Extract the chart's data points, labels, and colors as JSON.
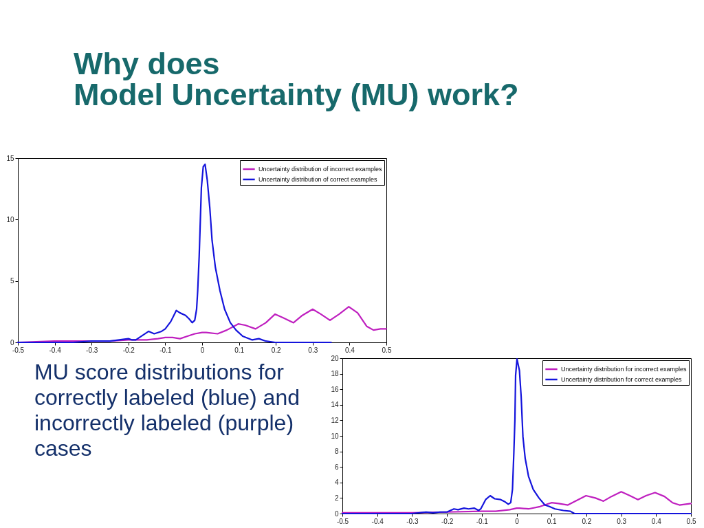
{
  "chart_data": [
    {
      "type": "other",
      "title": "Why does\nModel Uncertainty (MU) work?"
    },
    {
      "type": "line",
      "xlim": [
        -0.5,
        0.5
      ],
      "xticks": [
        -0.5,
        -0.4,
        -0.3,
        -0.2,
        -0.1,
        0,
        0.1,
        0.2,
        0.3,
        0.4,
        0.5
      ],
      "ylim": [
        0,
        15
      ],
      "yticks": [
        0,
        5,
        10,
        15
      ],
      "legend": "top right",
      "series": [
        {
          "name": "Uncertainty distribution of incorrect examples",
          "color": "#bf1fbf",
          "x": [
            -0.5,
            -0.4,
            -0.3,
            -0.25,
            -0.2,
            -0.18,
            -0.15,
            -0.12,
            -0.1,
            -0.08,
            -0.06,
            -0.04,
            -0.02,
            0,
            0.011,
            0.042,
            0.067,
            0.098,
            0.117,
            0.145,
            0.173,
            0.198,
            0.22,
            0.248,
            0.272,
            0.3,
            0.322,
            0.347,
            0.372,
            0.398,
            0.422,
            0.447,
            0.465,
            0.484,
            0.5
          ],
          "values": [
            0,
            0.1,
            0.1,
            0.1,
            0.2,
            0.2,
            0.2,
            0.3,
            0.4,
            0.4,
            0.3,
            0.5,
            0.7,
            0.8,
            0.8,
            0.7,
            1.0,
            1.5,
            1.4,
            1.1,
            1.6,
            2.3,
            2.0,
            1.6,
            2.2,
            2.7,
            2.3,
            1.8,
            2.3,
            2.9,
            2.4,
            1.3,
            1.0,
            1.1,
            1.1
          ]
        },
        {
          "name": "Uncertainty distribution of correct examples",
          "color": "#1414dc",
          "x": [
            -0.5,
            -0.35,
            -0.3,
            -0.25,
            -0.2,
            -0.19,
            -0.18,
            -0.145,
            -0.13,
            -0.11,
            -0.1,
            -0.085,
            -0.07,
            -0.06,
            -0.045,
            -0.035,
            -0.027,
            -0.02,
            -0.015,
            -0.012,
            -0.008,
            -0.005,
            -0.002,
            0.003,
            0.008,
            0.014,
            0.021,
            0.027,
            0.036,
            0.0485,
            0.061,
            0.0765,
            0.092,
            0.11,
            0.136,
            0.154,
            0.173,
            0.198,
            0.23,
            0.35
          ],
          "values": [
            0,
            0,
            0.1,
            0.1,
            0.3,
            0.2,
            0.2,
            0.9,
            0.7,
            0.9,
            1.1,
            1.7,
            2.6,
            2.4,
            2.2,
            1.9,
            1.6,
            1.8,
            2.7,
            4.2,
            7.0,
            9.8,
            12.6,
            14.3,
            14.5,
            13.2,
            10.9,
            8.3,
            6.1,
            4.2,
            2.7,
            1.6,
            1.0,
            0.5,
            0.2,
            0.3,
            0.1,
            0,
            0,
            0
          ]
        }
      ]
    },
    {
      "type": "other",
      "annotations": [
        "MU score distributions for correctly labeled (blue) and incorrectly labeled (purple) cases"
      ]
    },
    {
      "type": "line",
      "xlim": [
        -0.5,
        0.5
      ],
      "xticks": [
        -0.5,
        -0.4,
        -0.3,
        -0.2,
        -0.1,
        0,
        0.1,
        0.2,
        0.3,
        0.4,
        0.5
      ],
      "ylim": [
        0,
        20
      ],
      "yticks": [
        0,
        2,
        4,
        6,
        8,
        10,
        12,
        14,
        16,
        18,
        20
      ],
      "legend": "top right",
      "series": [
        {
          "name": "Uncertainty distribution for incorrect examples",
          "color": "#bf1fbf",
          "x": [
            -0.5,
            -0.3,
            -0.2,
            -0.1,
            -0.06,
            -0.02,
            0,
            0.008,
            0.034,
            0.067,
            0.1,
            0.12,
            0.147,
            0.173,
            0.199,
            0.226,
            0.249,
            0.272,
            0.3,
            0.325,
            0.348,
            0.371,
            0.397,
            0.424,
            0.447,
            0.467,
            0.5
          ],
          "values": [
            0.1,
            0.1,
            0.2,
            0.3,
            0.3,
            0.5,
            0.7,
            0.7,
            0.6,
            0.9,
            1.4,
            1.3,
            1.1,
            1.7,
            2.3,
            2.0,
            1.6,
            2.2,
            2.8,
            2.3,
            1.8,
            2.3,
            2.7,
            2.2,
            1.4,
            1.1,
            1.3
          ]
        },
        {
          "name": "Uncertainty distribution for correct examples",
          "color": "#1414dc",
          "x": [
            -0.5,
            -0.3,
            -0.26,
            -0.24,
            -0.22,
            -0.2,
            -0.18,
            -0.168,
            -0.151,
            -0.138,
            -0.122,
            -0.109,
            -0.103,
            -0.089,
            -0.076,
            -0.063,
            -0.046,
            -0.033,
            -0.024,
            -0.017,
            -0.012,
            -0.008,
            -0.005,
            -0.003,
            0.001,
            0.008,
            0.013,
            0.018,
            0.0245,
            0.034,
            0.0475,
            0.064,
            0.081,
            0.094,
            0.11,
            0.134,
            0.154,
            0.166,
            0.5
          ],
          "values": [
            0,
            0,
            0.2,
            0.1,
            0.2,
            0.2,
            0.6,
            0.5,
            0.7,
            0.6,
            0.7,
            0.4,
            0.6,
            1.8,
            2.3,
            1.9,
            1.8,
            1.5,
            1.2,
            1.4,
            3.1,
            7.9,
            12.1,
            17.8,
            19.9,
            18.4,
            15.0,
            9.9,
            7.1,
            4.8,
            3.1,
            2.0,
            1.1,
            0.9,
            0.6,
            0.4,
            0.3,
            0,
            0
          ]
        }
      ]
    }
  ]
}
